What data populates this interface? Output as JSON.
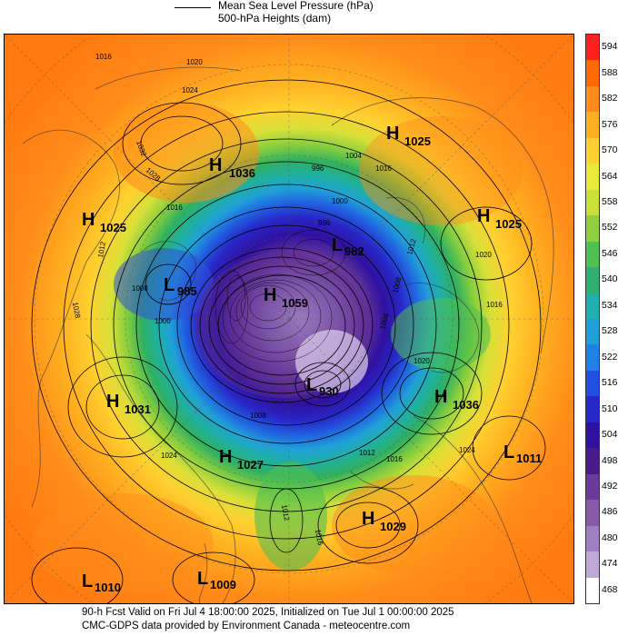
{
  "legend": {
    "line1": "Mean Sea Level Pressure (hPa)",
    "line2": "500-hPa Heights (dam)"
  },
  "footer": {
    "line1": "90-h Fcst Valid on Fri Jul  4 18:00:00 2025, Initialized on Tue Jul  1 00:00:00 2025",
    "line2": "CMC-GDPS data provided by Environment Canada - meteocentre.com"
  },
  "colorbar": {
    "levels": [
      "594",
      "588",
      "582",
      "576",
      "570",
      "564",
      "558",
      "552",
      "546",
      "540",
      "534",
      "528",
      "522",
      "516",
      "510",
      "504",
      "498",
      "492",
      "486",
      "480",
      "474",
      "468"
    ],
    "colors": [
      "#ff2020",
      "#ff6a00",
      "#ff8c1a",
      "#ffb020",
      "#ffd030",
      "#e8e838",
      "#c8e038",
      "#90d040",
      "#50c050",
      "#30b070",
      "#20b0b0",
      "#20a0d8",
      "#2080e8",
      "#2050e0",
      "#2828c8",
      "#3010a0",
      "#4a1a8a",
      "#6a3a9a",
      "#8a5aaa",
      "#a080c0",
      "#c0a8d8",
      "#ffffff"
    ]
  },
  "centers": [
    {
      "type": "H",
      "value": "1025"
    },
    {
      "type": "H",
      "value": "1036"
    },
    {
      "type": "H",
      "value": "1025"
    },
    {
      "type": "H",
      "value": "1025"
    },
    {
      "type": "L",
      "value": "985"
    },
    {
      "type": "H",
      "value": "1059"
    },
    {
      "type": "L",
      "value": "982"
    },
    {
      "type": "H",
      "value": "1031"
    },
    {
      "type": "L",
      "value": "930"
    },
    {
      "type": "H",
      "value": "1036"
    },
    {
      "type": "H",
      "value": "1027"
    },
    {
      "type": "L",
      "value": "1011"
    },
    {
      "type": "H",
      "value": "1029"
    },
    {
      "type": "L",
      "value": "1010"
    },
    {
      "type": "L",
      "value": "1009"
    }
  ],
  "isobar_labels": [
    "1016",
    "1020",
    "1024",
    "1032",
    "1028",
    "1016",
    "1012",
    "1008",
    "1000",
    "996",
    "1004",
    "1016",
    "1012",
    "1008",
    "1004",
    "1000",
    "996",
    "1020",
    "1016",
    "1024",
    "1012",
    "1016",
    "1020",
    "1028",
    "1024",
    "1008",
    "1012",
    "1016"
  ]
}
